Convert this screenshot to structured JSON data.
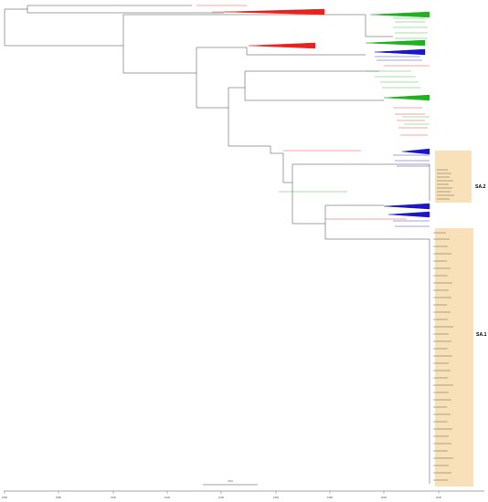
{
  "figure": {
    "clade_labels": [
      "SA.2",
      "SA.1"
    ],
    "axis": {
      "ticks": [
        "1860",
        "1880",
        "1900",
        "1920",
        "1940",
        "1960",
        "1980",
        "2000",
        "2020"
      ]
    },
    "scale_bar_label": "20.0"
  },
  "colors": {
    "red": "#e8221c",
    "green": "#1fb11f",
    "blue": "#1b16c8",
    "highlight": "#f6d9a6",
    "branch": "#444444"
  },
  "chart_data": {
    "type": "tree",
    "highlighted_clades": [
      "SA.2",
      "SA.1"
    ],
    "x_axis": [
      "1860",
      "1880",
      "1900",
      "1920",
      "1940",
      "1960",
      "1980",
      "2000",
      "2020"
    ],
    "scale_bar": "20.0"
  }
}
